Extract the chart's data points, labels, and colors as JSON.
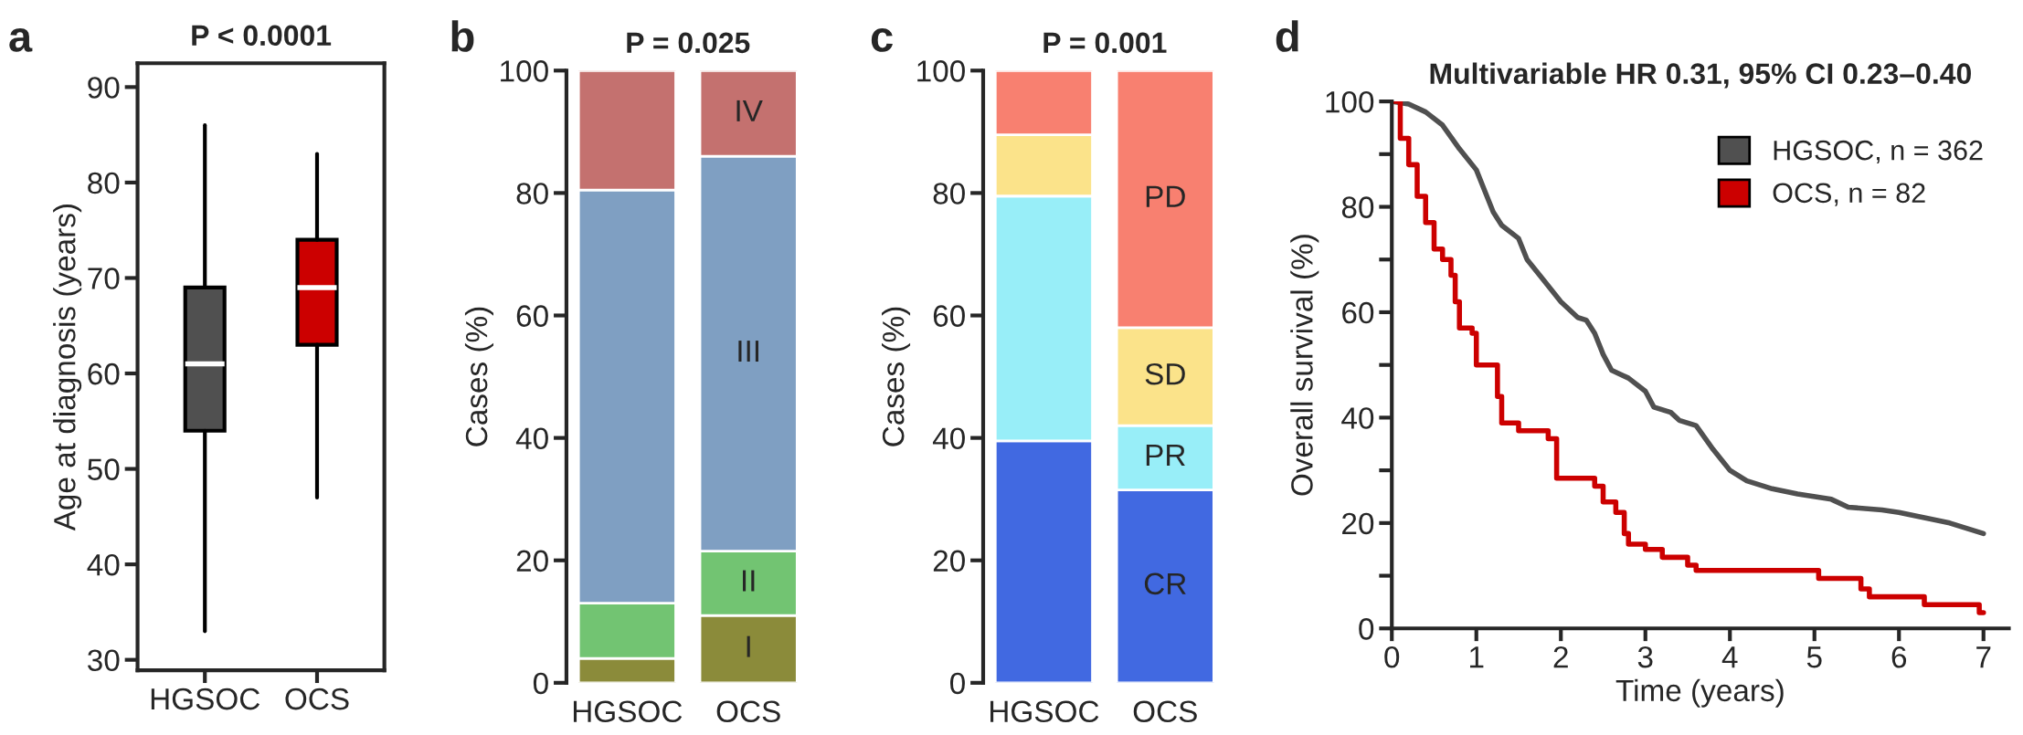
{
  "chart_data": [
    {
      "type": "box",
      "title": "P < 0.0001",
      "ylabel": "Age at diagnosis (years)",
      "categories": [
        "HGSOC",
        "OCS"
      ],
      "colors": [
        "#505050",
        "#cc0000"
      ],
      "boxes": [
        {
          "low": 33,
          "q1": 54,
          "median": 61,
          "q3": 69,
          "high": 86
        },
        {
          "low": 47,
          "q1": 63,
          "median": 69,
          "q3": 74,
          "high": 83
        }
      ],
      "ylim": [
        28.9,
        92.5
      ],
      "yticks": [
        30,
        40,
        50,
        60,
        70,
        80,
        90
      ],
      "annotations": [
        "a"
      ]
    },
    {
      "type": "bar",
      "stacked": true,
      "title": "P = 0.025",
      "ylabel": "Cases (%)",
      "categories": [
        "HGSOC",
        "OCS"
      ],
      "series": [
        {
          "name": "I",
          "color": "#8b8b3a",
          "values": [
            4,
            11
          ]
        },
        {
          "name": "II",
          "color": "#72c472",
          "values": [
            9,
            10.5
          ]
        },
        {
          "name": "III",
          "color": "#7f9fc2",
          "values": [
            67.5,
            64.5
          ]
        },
        {
          "name": "IV",
          "color": "#c4716f",
          "values": [
            19.5,
            14
          ]
        }
      ],
      "ylim": [
        0,
        100
      ],
      "yticks": [
        0,
        20,
        40,
        60,
        80,
        100
      ],
      "annotations": [
        "b"
      ]
    },
    {
      "type": "bar",
      "stacked": true,
      "title": "P = 0.001",
      "ylabel": "Cases (%)",
      "categories": [
        "HGSOC",
        "OCS"
      ],
      "series": [
        {
          "name": "CR",
          "color": "#4169e1",
          "values": [
            39.5,
            31.5
          ]
        },
        {
          "name": "PR",
          "color": "#98eef8",
          "values": [
            40,
            10.5
          ]
        },
        {
          "name": "SD",
          "color": "#fbe38a",
          "values": [
            10,
            16
          ]
        },
        {
          "name": "PD",
          "color": "#f88070",
          "values": [
            10.5,
            42
          ]
        }
      ],
      "ylim": [
        0,
        100
      ],
      "yticks": [
        0,
        20,
        40,
        60,
        80,
        100
      ],
      "annotations": [
        "c"
      ]
    },
    {
      "type": "line",
      "title": "Multivariable HR 0.31, 95% CI 0.23–0.40",
      "xlabel": "Time (years)",
      "ylabel": "Overall survival (%)",
      "legend": "top right",
      "series": [
        {
          "name": "HGSOC, n = 362",
          "color": "#505050",
          "type": "line",
          "x": [
            0,
            0.2,
            0.4,
            0.6,
            0.8,
            1.0,
            1.1,
            1.2,
            1.3,
            1.5,
            1.6,
            1.8,
            2.0,
            2.2,
            2.3,
            2.4,
            2.5,
            2.6,
            2.8,
            3.0,
            3.1,
            3.3,
            3.4,
            3.6,
            3.8,
            4.0,
            4.2,
            4.5,
            4.8,
            5.2,
            5.4,
            5.8,
            6.0,
            6.3,
            6.6,
            7.0
          ],
          "values": [
            100,
            99.5,
            98,
            95.5,
            91,
            87,
            83,
            79,
            76.5,
            74,
            70,
            66,
            62,
            59,
            58.5,
            56,
            52,
            49,
            47.5,
            45,
            42,
            41,
            39.5,
            38.5,
            34,
            30,
            28,
            26.5,
            25.5,
            24.5,
            23,
            22.5,
            22,
            21,
            20,
            18
          ]
        },
        {
          "name": "OCS, n = 82",
          "color": "#cc0000",
          "type": "step",
          "x": [
            0,
            0.1,
            0.2,
            0.3,
            0.4,
            0.5,
            0.6,
            0.7,
            0.75,
            0.8,
            0.95,
            1.0,
            1.25,
            1.3,
            1.5,
            1.85,
            1.95,
            2.4,
            2.5,
            2.65,
            2.75,
            2.8,
            3.0,
            3.2,
            3.5,
            3.6,
            5.05,
            5.55,
            5.65,
            6.3,
            6.95,
            7.0
          ],
          "values": [
            100,
            93,
            88,
            82,
            77,
            72,
            70,
            67,
            62,
            57,
            56,
            50,
            44,
            39,
            37.5,
            36,
            28.5,
            27,
            24,
            22,
            18,
            16,
            15,
            13.5,
            12,
            11,
            9.5,
            7.5,
            6,
            4.5,
            3,
            3
          ]
        }
      ],
      "xlim": [
        0,
        7.3
      ],
      "xticks": [
        0,
        1,
        2,
        3,
        4,
        5,
        6,
        7
      ],
      "ylim": [
        0,
        100
      ],
      "yticks": [
        0,
        {
          "value": 10,
          "label": null
        },
        20,
        {
          "value": 30,
          "label": null
        },
        40,
        {
          "value": 50,
          "label": null
        },
        60,
        {
          "value": 70,
          "label": null
        },
        80,
        {
          "value": 90,
          "label": null
        },
        100
      ],
      "annotations": [
        "d"
      ]
    }
  ]
}
